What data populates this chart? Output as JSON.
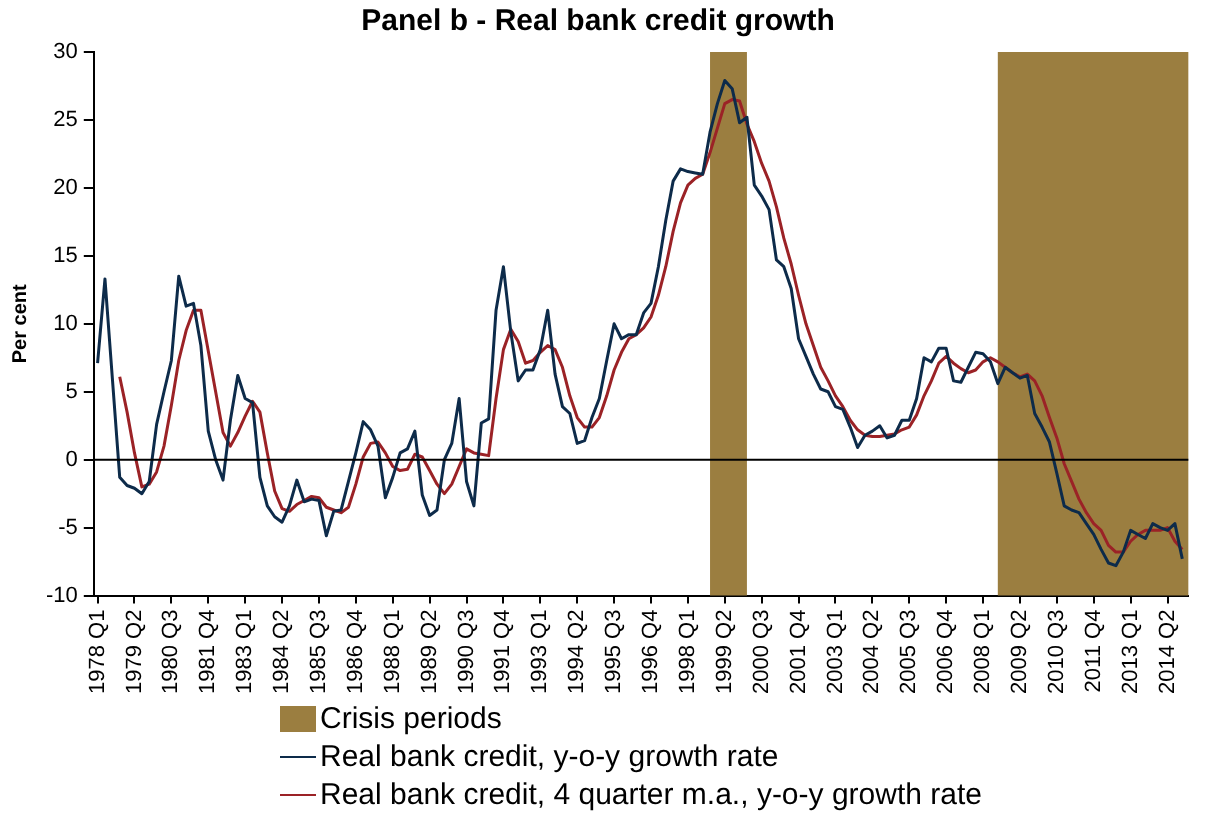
{
  "chart_data": {
    "type": "line",
    "title": "Panel b - Real bank credit growth",
    "ylabel": "Per cent",
    "x": [
      "1978-01",
      "1978-04",
      "1978-07",
      "1978-10",
      "1979-01",
      "1979-04",
      "1979-07",
      "1979-10",
      "1980-01",
      "1980-04",
      "1980-07",
      "1980-10",
      "1981-01",
      "1981-04",
      "1981-07",
      "1981-10",
      "1982-01",
      "1982-04",
      "1982-07",
      "1982-10",
      "1983-01",
      "1983-04",
      "1983-07",
      "1983-10",
      "1984-01",
      "1984-04",
      "1984-07",
      "1984-10",
      "1985-01",
      "1985-04",
      "1985-07",
      "1985-10",
      "1986-01",
      "1986-04",
      "1986-07",
      "1986-10",
      "1987-01",
      "1987-04",
      "1987-07",
      "1987-10",
      "1988-01",
      "1988-04",
      "1988-07",
      "1988-10",
      "1989-01",
      "1989-04",
      "1989-07",
      "1989-10",
      "1990-01",
      "1990-04",
      "1990-07",
      "1990-10",
      "1991-01",
      "1991-04",
      "1991-07",
      "1991-10",
      "1992-01",
      "1992-04",
      "1992-07",
      "1992-10",
      "1993-01",
      "1993-04",
      "1993-07",
      "1993-10",
      "1994-01",
      "1994-04",
      "1994-07",
      "1994-10",
      "1995-01",
      "1995-04",
      "1995-07",
      "1995-10",
      "1996-01",
      "1996-04",
      "1996-07",
      "1996-10",
      "1997-01",
      "1997-04",
      "1997-07",
      "1997-10",
      "1998-01",
      "1998-04",
      "1998-07",
      "1998-10",
      "1999-01",
      "1999-04",
      "1999-07",
      "1999-10",
      "2000-01",
      "2000-04",
      "2000-07",
      "2000-10",
      "2001-01",
      "2001-04",
      "2001-07",
      "2001-10",
      "2002-01",
      "2002-04",
      "2002-07",
      "2002-10",
      "2003-01",
      "2003-04",
      "2003-07",
      "2003-10",
      "2004-01",
      "2004-04",
      "2004-07",
      "2004-10",
      "2005-01",
      "2005-04",
      "2005-07",
      "2005-10",
      "2006-01",
      "2006-04",
      "2006-07",
      "2006-10",
      "2007-01",
      "2007-04",
      "2007-07",
      "2007-10",
      "2008-01",
      "2008-04",
      "2008-07",
      "2008-10",
      "2009-01",
      "2009-04",
      "2009-07",
      "2009-10",
      "2010-01",
      "2010-04",
      "2010-07",
      "2010-10",
      "2011-01",
      "2011-04",
      "2011-07",
      "2011-10",
      "2012-01",
      "2012-04",
      "2012-07",
      "2012-10",
      "2013-01",
      "2013-04",
      "2013-07",
      "2013-10",
      "2014-01",
      "2014-04",
      "2014-07",
      "2014-10"
    ],
    "xlim": [
      "1977-11-15",
      "2014-12-15"
    ],
    "xticks": [
      {
        "value": "1978-01",
        "label": "1978 Q1"
      },
      {
        "value": "1979-04",
        "label": "1979 Q2"
      },
      {
        "value": "1980-07",
        "label": "1980 Q3"
      },
      {
        "value": "1981-10",
        "label": "1981 Q4"
      },
      {
        "value": "1983-01",
        "label": "1983 Q1"
      },
      {
        "value": "1984-04",
        "label": "1984 Q2"
      },
      {
        "value": "1985-07",
        "label": "1985 Q3"
      },
      {
        "value": "1986-10",
        "label": "1986 Q4"
      },
      {
        "value": "1988-01",
        "label": "1988 Q1"
      },
      {
        "value": "1989-04",
        "label": "1989 Q2"
      },
      {
        "value": "1990-07",
        "label": "1990 Q3"
      },
      {
        "value": "1991-10",
        "label": "1991 Q4"
      },
      {
        "value": "1993-01",
        "label": "1993 Q1"
      },
      {
        "value": "1994-04",
        "label": "1994 Q2"
      },
      {
        "value": "1995-07",
        "label": "1995 Q3"
      },
      {
        "value": "1996-10",
        "label": "1996 Q4"
      },
      {
        "value": "1998-01",
        "label": "1998 Q1"
      },
      {
        "value": "1999-04",
        "label": "1999 Q2"
      },
      {
        "value": "2000-07",
        "label": "2000 Q3"
      },
      {
        "value": "2001-10",
        "label": "2001 Q4"
      },
      {
        "value": "2003-01",
        "label": "2003 Q1"
      },
      {
        "value": "2004-04",
        "label": "2004 Q2"
      },
      {
        "value": "2005-07",
        "label": "2005 Q3"
      },
      {
        "value": "2006-10",
        "label": "2006 Q4"
      },
      {
        "value": "2008-01",
        "label": "2008 Q1"
      },
      {
        "value": "2009-04",
        "label": "2009 Q2"
      },
      {
        "value": "2010-07",
        "label": "2010 Q3"
      },
      {
        "value": "2011-10",
        "label": "2011 Q4"
      },
      {
        "value": "2013-01",
        "label": "2013 Q1"
      },
      {
        "value": "2014-04",
        "label": "2014 Q2"
      }
    ],
    "series": [
      {
        "name": "Real bank credit, y-o-y growth rate",
        "color": "#0d2b4a",
        "values": [
          7.1,
          13.3,
          6.0,
          -1.3,
          -1.9,
          -2.1,
          -2.5,
          -1.6,
          2.6,
          5.0,
          7.3,
          13.5,
          11.3,
          11.5,
          8.4,
          2.1,
          0,
          -1.5,
          2.9,
          6.2,
          4.5,
          4.2,
          -1.3,
          -3.4,
          -4.2,
          -4.6,
          -3.4,
          -1.5,
          -3.1,
          -2.9,
          -3.0,
          -5.6,
          -3.8,
          -3.7,
          -1.6,
          0.5,
          2.8,
          2.2,
          1.0,
          -2.8,
          -1.3,
          0.5,
          0.8,
          2.1,
          -2.6,
          -4.1,
          -3.7,
          0,
          1.2,
          4.5,
          -1.6,
          -3.4,
          2.7,
          3.0,
          11.0,
          14.2,
          9.4,
          5.8,
          6.6,
          6.6,
          8.1,
          11.0,
          6.3,
          3.9,
          3.4,
          1.2,
          1.4,
          3.1,
          4.5,
          7.3,
          10.0,
          8.9,
          9.2,
          9.2,
          10.8,
          11.5,
          14.2,
          17.6,
          20.5,
          21.4,
          21.2,
          21.1,
          21.0,
          24.1,
          26.2,
          27.9,
          27.3,
          24.8,
          25.2,
          20.2,
          19.4,
          18.4,
          14.7,
          14.2,
          12.6,
          8.9,
          7.6,
          6.3,
          5.2,
          5.0,
          3.9,
          3.7,
          2.4,
          0.9,
          1.8,
          2.1,
          2.5,
          1.6,
          1.8,
          2.9,
          2.9,
          4.5,
          7.5,
          7.2,
          8.2,
          8.2,
          5.8,
          5.7,
          6.8,
          7.9,
          7.8,
          7.2,
          5.6,
          6.8,
          6.4,
          6.0,
          6.2,
          3.4,
          2.4,
          1.3,
          -1.0,
          -3.4,
          -3.7,
          -3.9,
          -4.7,
          -5.5,
          -6.6,
          -7.6,
          -7.8,
          -6.8,
          -5.2,
          -5.5,
          -5.8,
          -4.7,
          -5.0,
          -5.2,
          -4.7,
          -7.3
        ]
      },
      {
        "name": "Real bank credit, 4 quarter m.a., y-o-y growth rate",
        "color": "#9b2226",
        "values": [
          null,
          null,
          null,
          6.1,
          3.5,
          0.5,
          -2.0,
          -1.8,
          -0.9,
          1.0,
          4.0,
          7.3,
          9.5,
          11.0,
          11.0,
          8.0,
          5.0,
          2.0,
          1.0,
          2.0,
          3.2,
          4.3,
          3.5,
          0.5,
          -2.3,
          -3.6,
          -3.8,
          -3.3,
          -3.0,
          -2.7,
          -2.8,
          -3.5,
          -3.7,
          -3.9,
          -3.5,
          -1.8,
          0.2,
          1.2,
          1.3,
          0.5,
          -0.5,
          -0.8,
          -0.7,
          0.4,
          0.2,
          -0.8,
          -1.8,
          -2.5,
          -1.8,
          -0.5,
          0.8,
          0.5,
          0.4,
          0.3,
          4.5,
          8.1,
          9.6,
          8.7,
          7.1,
          7.3,
          7.9,
          8.4,
          8.1,
          6.8,
          4.7,
          3.1,
          2.4,
          2.4,
          3.1,
          4.7,
          6.6,
          7.9,
          8.9,
          9.2,
          9.7,
          10.5,
          12.1,
          14.2,
          16.8,
          18.9,
          20.2,
          20.7,
          21.0,
          22.6,
          24.4,
          26.2,
          26.5,
          26.4,
          24.7,
          23.4,
          21.8,
          20.5,
          18.6,
          16.3,
          14.4,
          12.1,
          10.0,
          8.4,
          6.8,
          5.8,
          4.7,
          3.9,
          2.9,
          2.2,
          1.8,
          1.7,
          1.7,
          1.8,
          1.9,
          2.2,
          2.4,
          3.3,
          4.7,
          5.8,
          7.1,
          7.6,
          7.1,
          6.7,
          6.4,
          6.6,
          7.2,
          7.5,
          7.2,
          6.8,
          6.4,
          6.1,
          6.3,
          5.8,
          4.7,
          3.1,
          1.6,
          -0.3,
          -1.6,
          -2.9,
          -3.9,
          -4.7,
          -5.2,
          -6.3,
          -6.8,
          -6.8,
          -6.0,
          -5.5,
          -5.2,
          -5.2,
          -5.2,
          -5.0,
          -6.0,
          -6.6
        ]
      }
    ],
    "ylim": [
      -10,
      30
    ],
    "yticks": [
      -10,
      -5,
      0,
      5,
      10,
      15,
      20,
      25,
      30
    ],
    "bands": [
      {
        "axis": "x",
        "from": "1998-10",
        "to": "2000-01",
        "label": "Crisis periods",
        "color": "#9b7e40"
      },
      {
        "axis": "x",
        "from": "2008-07",
        "to": "2014-12-15",
        "color": "#9b7e40"
      }
    ],
    "ref_lines": [
      {
        "axis": "y",
        "value": 0,
        "color": "#000000"
      }
    ],
    "legend": "bottom",
    "grid": false
  }
}
